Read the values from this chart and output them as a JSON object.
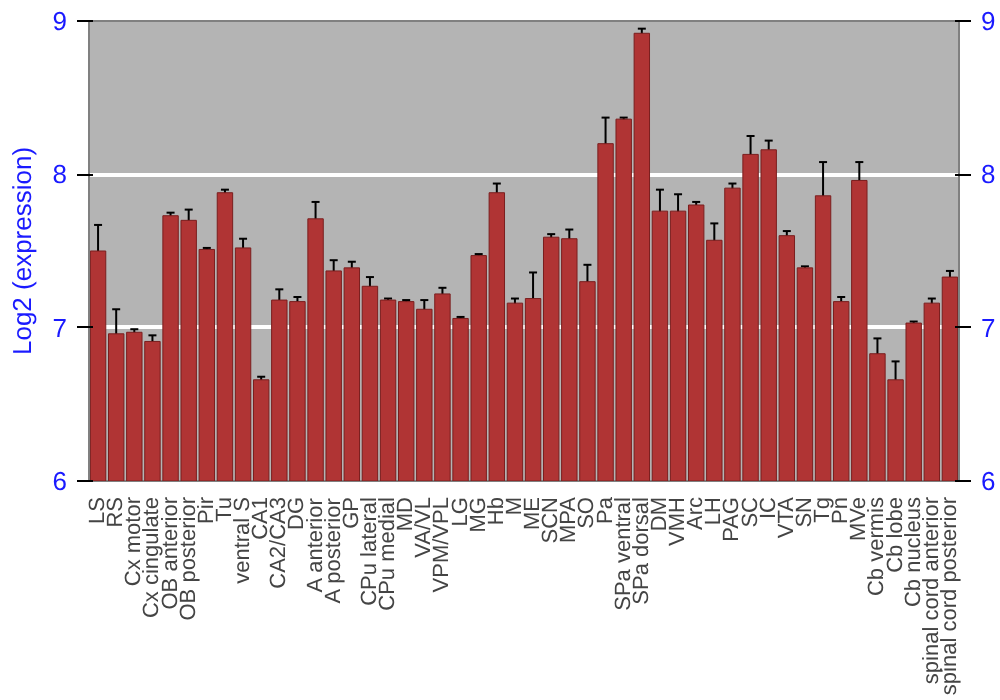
{
  "chart_data": {
    "type": "bar",
    "ylabel": "Log2 (expression)",
    "categories": [
      "LS",
      "RS",
      "Cx motor",
      "Cx cingulate",
      "OB anterior",
      "OB posterior",
      "Pir",
      "Tu",
      "ventral S",
      "CA1",
      "CA2/CA3",
      "DG",
      "A anterior",
      "A posterior",
      "GP",
      "CPu lateral",
      "CPu medial",
      "MD",
      "VA/VL",
      "VPM/VPL",
      "LG",
      "MG",
      "Hb",
      "M",
      "ME",
      "SCN",
      "MPA",
      "SO",
      "Pa",
      "SPa ventral",
      "SPa dorsal",
      "DM",
      "VMH",
      "Arc",
      "LH",
      "PAG",
      "SC",
      "IC",
      "VTA",
      "SN",
      "Tg",
      "Pn",
      "MVe",
      "Cb vermis",
      "Cb lobe",
      "Cb nucleus",
      "spinal cord anterior",
      "spinal cord posterior"
    ],
    "values": [
      7.5,
      6.96,
      6.97,
      6.91,
      7.73,
      7.7,
      7.51,
      7.88,
      7.52,
      6.66,
      7.18,
      7.17,
      7.71,
      7.37,
      7.39,
      7.27,
      7.18,
      7.17,
      7.12,
      7.22,
      7.06,
      7.47,
      7.88,
      7.16,
      7.19,
      7.59,
      7.58,
      7.3,
      8.2,
      8.36,
      8.92,
      7.76,
      7.76,
      7.8,
      7.57,
      7.91,
      8.13,
      8.16,
      7.6,
      7.39,
      7.86,
      7.17,
      7.96,
      6.83,
      6.66,
      7.03,
      7.16,
      7.33
    ],
    "errors": [
      0.17,
      0.16,
      0.02,
      0.04,
      0.02,
      0.07,
      0.01,
      0.02,
      0.06,
      0.02,
      0.07,
      0.03,
      0.11,
      0.07,
      0.04,
      0.06,
      0.01,
      0.01,
      0.06,
      0.04,
      0.01,
      0.01,
      0.06,
      0.03,
      0.17,
      0.02,
      0.06,
      0.11,
      0.17,
      0.01,
      0.03,
      0.14,
      0.11,
      0.02,
      0.11,
      0.03,
      0.12,
      0.06,
      0.03,
      0.01,
      0.22,
      0.03,
      0.12,
      0.1,
      0.12,
      0.01,
      0.03,
      0.04
    ],
    "color": "#b03434",
    "ylim": [
      6,
      9
    ],
    "yticks": [
      6,
      7,
      8,
      9
    ],
    "y2lim": [
      6,
      9
    ],
    "y2ticks": [
      6,
      7,
      8,
      9
    ],
    "grid": "y"
  }
}
